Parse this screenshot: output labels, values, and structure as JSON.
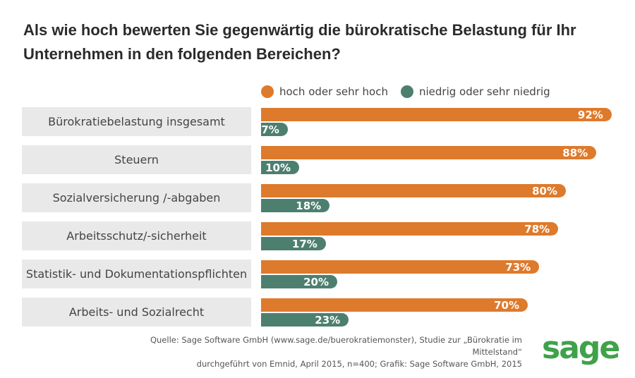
{
  "title": "Als wie hoch bewerten Sie gegenwärtig die bürokratische Belastung für Ihr Unternehmen in den folgenden Bereichen?",
  "legend": {
    "hoch": "hoch oder sehr hoch",
    "niedrig": "niedrig oder sehr niedrig"
  },
  "colors": {
    "hoch": "#de7a2c",
    "niedrig": "#4d7f6f",
    "category_bg": "#e9e9e9",
    "logo": "#3fa24a"
  },
  "chart_data": {
    "type": "bar",
    "orientation": "horizontal",
    "categories": [
      "Bürokratiebelastung insgesamt",
      "Steuern",
      "Sozialversicherung /-abgaben",
      "Arbeitsschutz/-sicherheit",
      "Statistik- und Dokumentationspflichten",
      "Arbeits- und Sozialrecht"
    ],
    "series": [
      {
        "name": "hoch oder sehr hoch",
        "values": [
          92,
          88,
          80,
          78,
          73,
          70
        ]
      },
      {
        "name": "niedrig oder sehr niedrig",
        "values": [
          7,
          10,
          18,
          17,
          20,
          23
        ]
      }
    ],
    "unit": "%",
    "xlim": [
      0,
      100
    ],
    "grid": false,
    "legend_position": "top"
  },
  "source": {
    "line1": "Quelle: Sage Software GmbH (www.sage.de/buerokratiemonster), Studie zur „Bürokratie im Mittelstand“",
    "line2": "durchgeführt von Emnid, April 2015, n=400; Grafik: Sage Software GmbH, 2015"
  },
  "logo": "sage"
}
